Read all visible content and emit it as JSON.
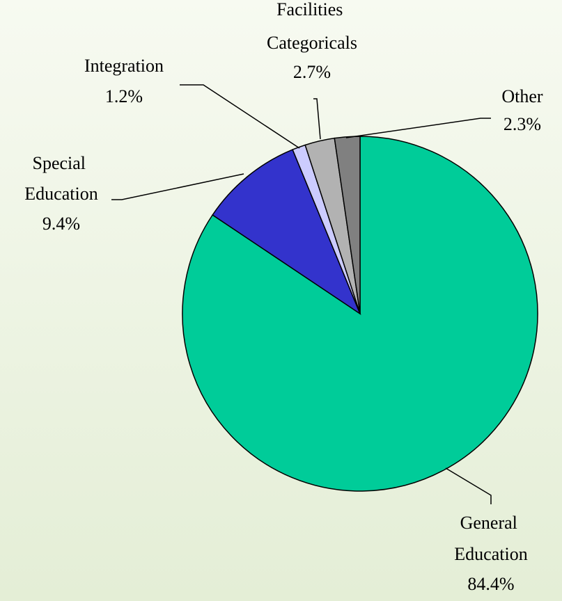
{
  "chart_data": {
    "type": "pie",
    "categories": [
      "General Education",
      "Special Education",
      "Integration",
      "Facilities Categoricals",
      "Other"
    ],
    "values": [
      84.4,
      9.4,
      1.2,
      2.7,
      2.3
    ],
    "value_labels": [
      "84.4%",
      "9.4%",
      "1.2%",
      "2.7%",
      "2.3%"
    ],
    "colors": [
      "#00cc99",
      "#3333cc",
      "#ccccff",
      "#b2b2b2",
      "#808080"
    ]
  }
}
